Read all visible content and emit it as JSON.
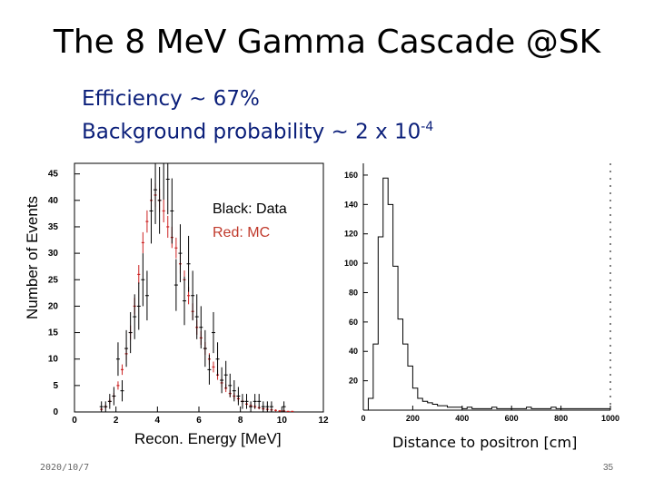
{
  "slide": {
    "title": "The 8 MeV Gamma Cascade @SK",
    "efficiency_line": "Efficiency ~ 67%",
    "background_line_text": "Background probability ~ 2 x 10",
    "background_line_exp": "-4",
    "date": "2020/10/7",
    "page_number": "35"
  },
  "colors": {
    "data": "#000000",
    "mc": "#cc2222",
    "subtitle": "#0b1f7a"
  },
  "chart_data": [
    {
      "type": "bar",
      "title": "",
      "xlabel": "Recon. Energy [MeV]",
      "ylabel": "Number of Events",
      "xlim": [
        0,
        12
      ],
      "ylim": [
        0,
        47
      ],
      "xticks": [
        "0",
        "2",
        "4",
        "6",
        "8",
        "10",
        "12"
      ],
      "yticks": [
        "0",
        "5",
        "10",
        "15",
        "20",
        "25",
        "30",
        "35",
        "40",
        "45"
      ],
      "legend": {
        "placement": "top-right",
        "entries": [
          "Black: Data",
          "Red: MC"
        ]
      },
      "bin_width": 0.2,
      "series": [
        {
          "name": "Data",
          "color": "black",
          "x": [
            0.1,
            0.3,
            0.5,
            0.7,
            0.9,
            1.1,
            1.3,
            1.5,
            1.7,
            1.9,
            2.1,
            2.3,
            2.5,
            2.7,
            2.9,
            3.1,
            3.3,
            3.5,
            3.7,
            3.9,
            4.1,
            4.3,
            4.5,
            4.7,
            4.9,
            5.1,
            5.3,
            5.5,
            5.7,
            5.9,
            6.1,
            6.3,
            6.5,
            6.7,
            6.9,
            7.1,
            7.3,
            7.5,
            7.7,
            7.9,
            8.1,
            8.3,
            8.5,
            8.7,
            8.9,
            9.1,
            9.3,
            9.5,
            9.7,
            9.9,
            10.1,
            10.3,
            10.5,
            10.7,
            10.9,
            11.1,
            11.3,
            11.5,
            11.7,
            11.9
          ],
          "values": [
            0,
            0,
            0,
            0,
            0,
            0,
            1,
            1,
            2,
            3,
            10,
            4,
            12,
            15,
            18,
            20,
            25,
            22,
            38,
            42,
            40,
            47,
            44,
            38,
            24,
            30,
            21,
            28,
            22,
            18,
            16,
            12,
            8,
            15,
            10,
            6,
            7,
            5,
            4,
            3,
            2,
            2,
            1,
            2,
            2,
            1,
            1,
            1,
            0,
            0,
            1,
            0,
            0,
            0,
            0,
            0,
            0,
            0,
            0,
            0
          ]
        },
        {
          "name": "MC",
          "color": "red",
          "x": [
            0.1,
            0.3,
            0.5,
            0.7,
            0.9,
            1.1,
            1.3,
            1.5,
            1.7,
            1.9,
            2.1,
            2.3,
            2.5,
            2.7,
            2.9,
            3.1,
            3.3,
            3.5,
            3.7,
            3.9,
            4.1,
            4.3,
            4.5,
            4.7,
            4.9,
            5.1,
            5.3,
            5.5,
            5.7,
            5.9,
            6.1,
            6.3,
            6.5,
            6.7,
            6.9,
            7.1,
            7.3,
            7.5,
            7.7,
            7.9,
            8.1,
            8.3,
            8.5,
            8.7,
            8.9,
            9.1,
            9.3,
            9.5,
            9.7,
            9.9,
            10.1,
            10.3,
            10.5,
            10.7,
            10.9,
            11.1,
            11.3,
            11.5,
            11.7,
            11.9
          ],
          "values": [
            0,
            0,
            0,
            0,
            0,
            0,
            0.5,
            1,
            2,
            3,
            5,
            8,
            11,
            15,
            20,
            26,
            32,
            36,
            40,
            41,
            40,
            38,
            35,
            33,
            31,
            28,
            25,
            22,
            19,
            16,
            14,
            12,
            10,
            8.5,
            7,
            5.5,
            4.5,
            3.5,
            3,
            2.5,
            2,
            1.5,
            1.2,
            1,
            0.8,
            0.6,
            0.5,
            0.4,
            0.3,
            0.2,
            0.2,
            0.1,
            0.1,
            0,
            0,
            0,
            0,
            0,
            0,
            0
          ]
        }
      ]
    },
    {
      "type": "bar",
      "title": "",
      "xlabel": "Distance to positron [cm]",
      "ylabel": "",
      "xlim": [
        0,
        1000
      ],
      "ylim": [
        0,
        168
      ],
      "xticks": [
        "0",
        "200",
        "400",
        "600",
        "800",
        "1000"
      ],
      "yticks": [
        "20",
        "40",
        "60",
        "80",
        "100",
        "120",
        "140",
        "160"
      ],
      "bin_width": 20,
      "series": [
        {
          "name": "Data",
          "color": "black",
          "x": [
            10,
            30,
            50,
            70,
            90,
            110,
            130,
            150,
            170,
            190,
            210,
            230,
            250,
            270,
            290,
            310,
            330,
            350,
            370,
            390,
            410,
            430,
            450,
            470,
            490,
            510,
            530,
            550,
            570,
            590,
            610,
            630,
            650,
            670,
            690,
            710,
            730,
            750,
            770,
            790,
            810,
            830,
            850,
            870,
            890,
            910,
            930,
            950,
            970,
            990
          ],
          "values": [
            0,
            8,
            45,
            118,
            158,
            140,
            98,
            62,
            45,
            30,
            15,
            8,
            6,
            5,
            4,
            3,
            3,
            2,
            2,
            2,
            1,
            2,
            1,
            1,
            1,
            1,
            2,
            1,
            1,
            1,
            1,
            1,
            1,
            2,
            1,
            1,
            1,
            1,
            2,
            1,
            1,
            1,
            1,
            1,
            1,
            1,
            1,
            1,
            1,
            1
          ]
        }
      ]
    }
  ]
}
